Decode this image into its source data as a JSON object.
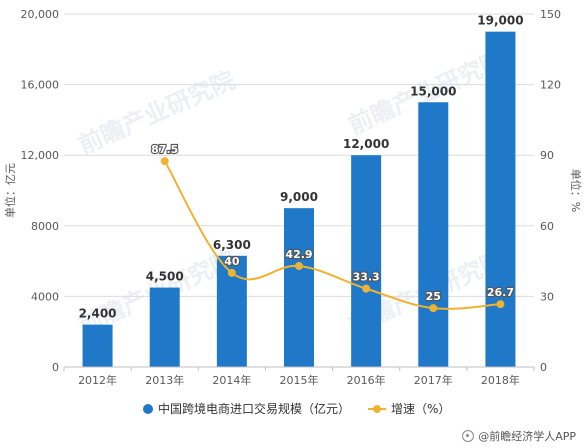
{
  "chart_data": {
    "type": "bar",
    "categories": [
      "2012年",
      "2013年",
      "2014年",
      "2015年",
      "2016年",
      "2017年",
      "2018年"
    ],
    "series": [
      {
        "name": "中国跨境电商进口交易规模（亿元）",
        "type": "bar",
        "axis": "left",
        "values": [
          2400,
          4500,
          6300,
          9000,
          12000,
          15000,
          19000
        ],
        "labels": [
          "2,400",
          "4,500",
          "6,300",
          "9,000",
          "12,000",
          "15,000",
          "19,000"
        ],
        "color": "#1f78c8"
      },
      {
        "name": "增速（%）",
        "type": "line",
        "axis": "right",
        "values": [
          null,
          87.5,
          40,
          42.9,
          33.3,
          25,
          26.7
        ],
        "labels": [
          "",
          "87.5",
          "40",
          "42.9",
          "33.3",
          "25",
          "26.7"
        ],
        "color": "#f0b22f"
      }
    ],
    "left_axis": {
      "label": "单位：亿元",
      "ylim": [
        0,
        20000
      ],
      "ticks": [
        0,
        4000,
        8000,
        12000,
        16000,
        20000
      ],
      "tick_labels": [
        "0",
        "4000",
        "8000",
        "12,000",
        "16,000",
        "20,000"
      ]
    },
    "right_axis": {
      "label": "单位：%",
      "ylim": [
        0,
        150
      ],
      "ticks": [
        0,
        30,
        60,
        90,
        120,
        150
      ],
      "tick_labels": [
        "0",
        "30",
        "60",
        "90",
        "120",
        "150"
      ]
    },
    "grid": true,
    "legend_position": "bottom"
  },
  "watermark": {
    "text": "前瞻产业研究院"
  },
  "footer": {
    "source": "@前瞻经济学人APP"
  }
}
